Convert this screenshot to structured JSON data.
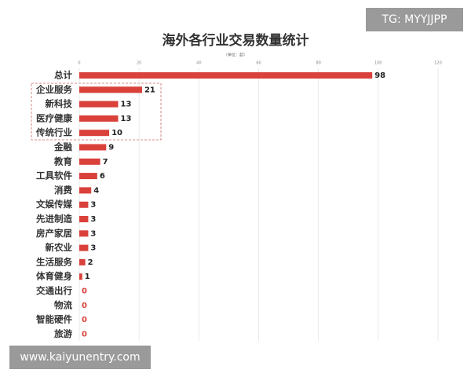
{
  "chart_data": {
    "type": "barh",
    "title": "海外各行业交易数量统计",
    "subtitle": "（单位：起）",
    "categories": [
      "总计",
      "企业服务",
      "新科技",
      "医疗健康",
      "传统行业",
      "金融",
      "教育",
      "工具软件",
      "消费",
      "文娱传媒",
      "先进制造",
      "房产家居",
      "新农业",
      "生活服务",
      "体育健身",
      "交通出行",
      "物流",
      "智能硬件",
      "旅游"
    ],
    "values": [
      98,
      21,
      13,
      13,
      10,
      9,
      7,
      6,
      4,
      3,
      3,
      3,
      3,
      2,
      1,
      0,
      0,
      0,
      0
    ],
    "color": "#d9413a",
    "zero_label_color": "#d9413a",
    "xlim": [
      0,
      120
    ],
    "xticks": [
      0,
      20,
      40,
      60,
      80,
      100,
      120
    ],
    "grid": true
  },
  "watermarks": [
    "TG: MYYJJPP",
    "www.kaiyunentry.com"
  ]
}
